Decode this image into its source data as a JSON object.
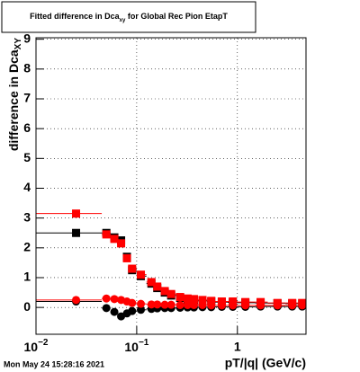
{
  "chart_data": {
    "type": "scatter",
    "title": {
      "text": "Fitted difference in Dca",
      "sub": "xy",
      "rest": " for Global Rec Pion EtapT"
    },
    "y_label": {
      "text": "difference in Dca",
      "sub": "XY"
    },
    "x_label": "pT/|q| (GeV/c)",
    "footer": "Mon May 24 15:28:16 2021",
    "log_x": true,
    "grid": true,
    "xlim": [
      0.01,
      4.8
    ],
    "ylim": [
      -0.9,
      9.05
    ],
    "xticks": [
      {
        "value": 0.01,
        "label": "10",
        "exponent": "−2"
      },
      {
        "value": 0.1,
        "label": "10",
        "exponent": "−1"
      },
      1
    ],
    "yticks": [
      0,
      1,
      2,
      3,
      4,
      5,
      6,
      7,
      8,
      9
    ],
    "x": [
      0.025,
      0.05,
      0.06,
      0.07,
      0.08,
      0.09,
      0.11,
      0.14,
      0.16,
      0.19,
      0.22,
      0.27,
      0.32,
      0.37,
      0.45,
      0.55,
      0.7,
      0.9,
      1.2,
      1.7,
      2.5,
      3.5,
      4.4
    ],
    "x_edges": [
      0.01,
      0.045,
      0.055,
      0.065,
      0.075,
      0.085,
      0.1,
      0.125,
      0.15,
      0.175,
      0.2,
      0.25,
      0.3,
      0.35,
      0.4,
      0.5,
      0.6,
      0.8,
      1.0,
      1.5,
      2,
      3,
      4,
      4.8
    ],
    "series": [
      {
        "marker": "square",
        "color": "#000000",
        "values": [
          2.5,
          2.5,
          2.35,
          2.25,
          1.7,
          1.25,
          1.05,
          0.8,
          0.65,
          0.5,
          0.4,
          0.32,
          0.27,
          0.25,
          0.22,
          0.2,
          0.18,
          0.17,
          0.16,
          0.15,
          0.14,
          0.13,
          0.13
        ]
      },
      {
        "marker": "square",
        "color": "#ff0000",
        "values": [
          3.15,
          2.45,
          2.3,
          2.15,
          1.65,
          1.3,
          1.1,
          0.85,
          0.7,
          0.55,
          0.45,
          0.35,
          0.3,
          0.28,
          0.25,
          0.22,
          0.2,
          0.2,
          0.18,
          0.18,
          0.15,
          0.15,
          0.15
        ]
      },
      {
        "marker": "circle",
        "color": "#000000",
        "values": [
          0.2,
          -0.02,
          -0.15,
          -0.3,
          -0.2,
          -0.12,
          -0.08,
          -0.05,
          -0.03,
          -0.02,
          -0.02,
          -0.01,
          0,
          0,
          0.01,
          0.01,
          0.02,
          0.02,
          0.02,
          0.03,
          0.03,
          0.03,
          0.03
        ]
      },
      {
        "marker": "circle",
        "color": "#ff0000",
        "values": [
          0.25,
          0.3,
          0.28,
          0.25,
          0.2,
          0.15,
          0.12,
          0.1,
          0.1,
          0.09,
          0.09,
          0.08,
          0.08,
          0.08,
          0.08,
          0.07,
          0.07,
          0.07,
          0.07,
          0.07,
          0.07,
          0.07,
          0.07
        ]
      }
    ]
  }
}
